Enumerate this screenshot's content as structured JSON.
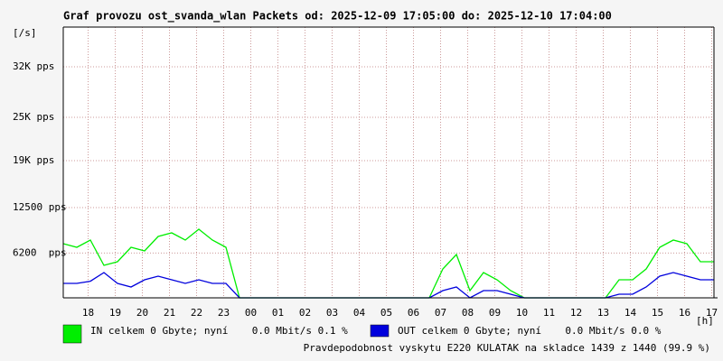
{
  "chart_data": {
    "type": "line",
    "title": "Graf provozu ost_svanda_wlan Packets od: 2025-12-09 17:05:00 do: 2025-12-10 17:04:00",
    "y_label": "[/s]",
    "x_label": "[h]",
    "note": "Pravdepodobnost vyskytu E220 KULATAK na skladce 1439 z 1440 (99.9 %)",
    "note_color": "#e00000",
    "x": [
      0,
      0.5,
      1,
      1.5,
      2,
      2.5,
      3,
      3.5,
      4,
      4.5,
      5,
      5.5,
      6,
      6.5,
      7,
      7.5,
      8,
      8.5,
      9,
      9.5,
      10,
      10.5,
      11,
      11.5,
      12,
      12.5,
      13,
      13.5,
      14,
      14.5,
      15,
      15.5,
      16,
      16.5,
      17,
      17.5,
      18,
      18.5,
      19,
      19.5,
      20,
      20.5,
      21,
      21.5,
      22,
      22.5,
      23,
      23.5,
      24
    ],
    "xlim": [
      0,
      24
    ],
    "xticks": [
      {
        "value": 0.917,
        "label": "18"
      },
      {
        "value": 1.917,
        "label": "19"
      },
      {
        "value": 2.917,
        "label": "20"
      },
      {
        "value": 3.917,
        "label": "21"
      },
      {
        "value": 4.917,
        "label": "22"
      },
      {
        "value": 5.917,
        "label": "23"
      },
      {
        "value": 6.917,
        "label": "00"
      },
      {
        "value": 7.917,
        "label": "01"
      },
      {
        "value": 8.917,
        "label": "02"
      },
      {
        "value": 9.917,
        "label": "03"
      },
      {
        "value": 10.917,
        "label": "04"
      },
      {
        "value": 11.917,
        "label": "05"
      },
      {
        "value": 12.917,
        "label": "06"
      },
      {
        "value": 13.917,
        "label": "07"
      },
      {
        "value": 14.917,
        "label": "08"
      },
      {
        "value": 15.917,
        "label": "09"
      },
      {
        "value": 16.917,
        "label": "10"
      },
      {
        "value": 17.917,
        "label": "11"
      },
      {
        "value": 18.917,
        "label": "12"
      },
      {
        "value": 19.917,
        "label": "13"
      },
      {
        "value": 20.917,
        "label": "14"
      },
      {
        "value": 21.917,
        "label": "15"
      },
      {
        "value": 22.917,
        "label": "16"
      },
      {
        "value": 23.917,
        "label": "17"
      }
    ],
    "ylim": [
      0,
      37500
    ],
    "yticks": [
      {
        "value": 6200,
        "label": "6200  pps"
      },
      {
        "value": 12500,
        "label": "12500 pps"
      },
      {
        "value": 19000,
        "label": "19K pps"
      },
      {
        "value": 25000,
        "label": "25K pps"
      },
      {
        "value": 32000,
        "label": "32K pps"
      }
    ],
    "grid": true,
    "series": [
      {
        "name": "IN celkem 0 Gbyte; nyní    0.0 Mbit/s 0.1 %",
        "color": "#00ee00",
        "values": [
          7500,
          7000,
          8000,
          4500,
          5000,
          7000,
          6500,
          8500,
          9000,
          8000,
          9500,
          8000,
          7000,
          0,
          0,
          0,
          0,
          0,
          0,
          0,
          0,
          0,
          0,
          0,
          0,
          0,
          0,
          0,
          4000,
          6000,
          1000,
          3500,
          2500,
          1000,
          0,
          0,
          0,
          0,
          0,
          0,
          0,
          2500,
          2500,
          4000,
          7000,
          8000,
          7500,
          5000,
          5000
        ]
      },
      {
        "name": "OUT celkem 0 Gbyte; nyní    0.0 Mbit/s 0.0 %",
        "color": "#0000dd",
        "values": [
          2000,
          2000,
          2300,
          3500,
          2000,
          1500,
          2500,
          3000,
          2500,
          2000,
          2500,
          2000,
          2000,
          0,
          0,
          0,
          0,
          0,
          0,
          0,
          0,
          0,
          0,
          0,
          0,
          0,
          0,
          0,
          1000,
          1500,
          0,
          1000,
          1000,
          500,
          0,
          0,
          0,
          0,
          0,
          0,
          0,
          500,
          500,
          1500,
          3000,
          3500,
          3000,
          2500,
          2500
        ]
      }
    ]
  }
}
